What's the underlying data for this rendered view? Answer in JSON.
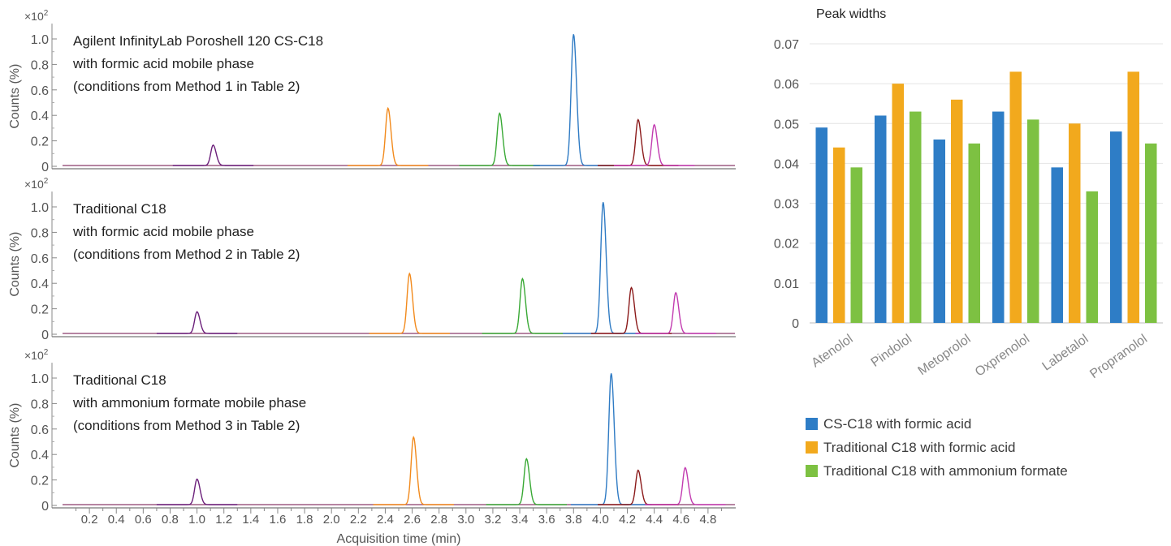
{
  "chart_data": [
    {
      "type": "line",
      "xlabel": "Acquisition time (min)",
      "ylabel": "Counts (%)",
      "y_multiplier_label": "×10",
      "y_multiplier_exp": "2",
      "x_ticks": [
        "0.2",
        "0.4",
        "0.6",
        "0.8",
        "1.0",
        "1.2",
        "1.4",
        "1.6",
        "1.8",
        "2.0",
        "2.2",
        "2.4",
        "2.6",
        "2.8",
        "3.0",
        "3.2",
        "3.4",
        "3.6",
        "3.8",
        "4.0",
        "4.2",
        "4.4",
        "4.6",
        "4.8"
      ],
      "y_ticks": [
        "0",
        "0.2",
        "0.4",
        "0.6",
        "0.8",
        "1.0"
      ],
      "xlim": [
        0,
        5.0
      ],
      "ylim": [
        0,
        1.1
      ],
      "panels": [
        {
          "lines": [
            "Agilent InfinityLab Poroshell 120 CS-C18",
            "with formic acid mobile phase",
            "(conditions from Method 1 in Table 2)"
          ],
          "peaks": [
            {
              "color": "#6b1f7a",
              "center": 1.12,
              "height": 0.16
            },
            {
              "color": "#f28a1c",
              "center": 2.42,
              "height": 0.45
            },
            {
              "color": "#39a935",
              "center": 3.25,
              "height": 0.41
            },
            {
              "color": "#2f7bc4",
              "center": 3.8,
              "height": 1.03
            },
            {
              "color": "#8b1a1a",
              "center": 4.28,
              "height": 0.36
            },
            {
              "color": "#c23bb0",
              "center": 4.4,
              "height": 0.32
            }
          ]
        },
        {
          "lines": [
            "Traditional C18",
            "with formic acid mobile phase",
            "(conditions from Method 2 in Table 2)"
          ],
          "peaks": [
            {
              "color": "#6b1f7a",
              "center": 1.0,
              "height": 0.17
            },
            {
              "color": "#f28a1c",
              "center": 2.58,
              "height": 0.47
            },
            {
              "color": "#39a935",
              "center": 3.42,
              "height": 0.43
            },
            {
              "color": "#2f7bc4",
              "center": 4.02,
              "height": 1.03
            },
            {
              "color": "#8b1a1a",
              "center": 4.23,
              "height": 0.36
            },
            {
              "color": "#c23bb0",
              "center": 4.56,
              "height": 0.32
            }
          ]
        },
        {
          "lines": [
            "Traditional C18",
            "with ammonium formate mobile phase",
            "(conditions from Method 3 in Table 2)"
          ],
          "peaks": [
            {
              "color": "#6b1f7a",
              "center": 1.0,
              "height": 0.2
            },
            {
              "color": "#f28a1c",
              "center": 2.61,
              "height": 0.53
            },
            {
              "color": "#39a935",
              "center": 3.45,
              "height": 0.36
            },
            {
              "color": "#2f7bc4",
              "center": 4.08,
              "height": 1.03
            },
            {
              "color": "#8b1a1a",
              "center": 4.28,
              "height": 0.27
            },
            {
              "color": "#c23bb0",
              "center": 4.63,
              "height": 0.29
            }
          ]
        }
      ]
    },
    {
      "type": "bar",
      "title": "Peak widths",
      "categories": [
        "Atenolol",
        "Pindolol",
        "Metoprolol",
        "Oxprenolol",
        "Labetalol",
        "Propranolol"
      ],
      "ylim": [
        0,
        0.07
      ],
      "y_ticks": [
        "0",
        "0.01",
        "0.02",
        "0.03",
        "0.04",
        "0.05",
        "0.06",
        "0.07"
      ],
      "grid": true,
      "legend_position": "bottom",
      "series": [
        {
          "name": "CS-C18 with formic acid",
          "color": "#2e7dc6",
          "values": [
            0.049,
            0.052,
            0.046,
            0.053,
            0.039,
            0.048
          ]
        },
        {
          "name": "Traditional C18 with formic acid",
          "color": "#f2a91d",
          "values": [
            0.044,
            0.06,
            0.056,
            0.063,
            0.05,
            0.063
          ]
        },
        {
          "name": "Traditional C18 with ammonium formate",
          "color": "#7dc142",
          "values": [
            0.039,
            0.053,
            0.045,
            0.051,
            0.033,
            0.045
          ]
        }
      ]
    }
  ]
}
